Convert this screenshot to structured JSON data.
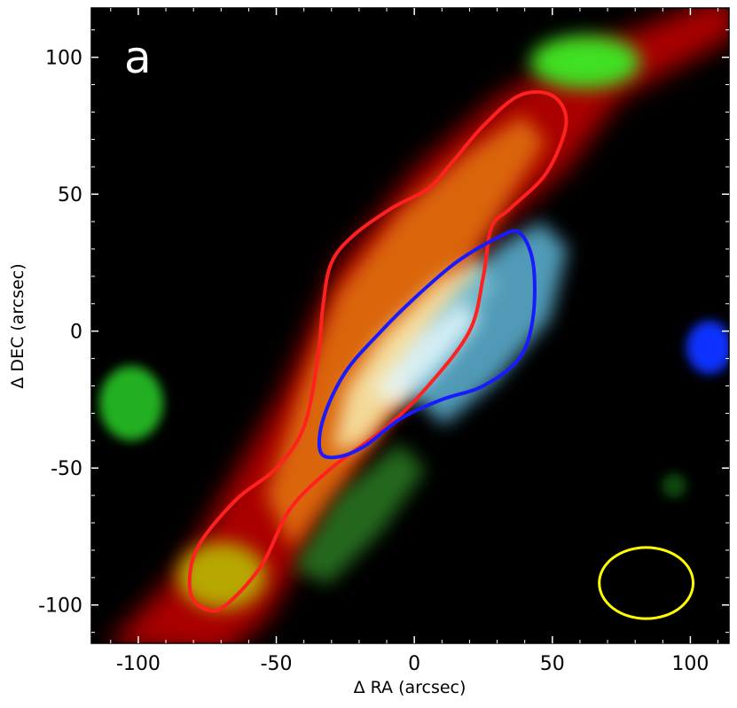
{
  "figure": {
    "panel_label": "a",
    "xlabel": "Δ RA (arcsec)",
    "ylabel": "Δ DEC (arcsec)",
    "x_ticks": [
      {
        "value": -100,
        "label": "-100"
      },
      {
        "value": -50,
        "label": "-50"
      },
      {
        "value": 0,
        "label": "0"
      },
      {
        "value": 50,
        "label": "50"
      },
      {
        "value": 100,
        "label": "100"
      }
    ],
    "y_ticks": [
      {
        "value": 100,
        "label": "100"
      },
      {
        "value": 50,
        "label": "50"
      },
      {
        "value": 0,
        "label": "0"
      },
      {
        "value": -50,
        "label": "-50"
      },
      {
        "value": -100,
        "label": "-100"
      }
    ],
    "xlim": [
      -117,
      114
    ],
    "ylim": [
      -114,
      118
    ],
    "image_type": "RGB composite map with contours",
    "contours": [
      {
        "name": "red-contour",
        "color": "#ff2020",
        "points": [
          [
            -74,
            -102
          ],
          [
            -81,
            -96
          ],
          [
            -79,
            -80
          ],
          [
            -65,
            -62
          ],
          [
            -50,
            -50
          ],
          [
            -40,
            -35
          ],
          [
            -35,
            -10
          ],
          [
            -33,
            10
          ],
          [
            -30,
            25
          ],
          [
            -22,
            35
          ],
          [
            -8,
            45
          ],
          [
            5,
            52
          ],
          [
            14,
            62
          ],
          [
            25,
            75
          ],
          [
            38,
            86
          ],
          [
            50,
            86
          ],
          [
            55,
            76
          ],
          [
            48,
            58
          ],
          [
            35,
            45
          ],
          [
            28,
            38
          ],
          [
            25,
            20
          ],
          [
            20,
            0
          ],
          [
            5,
            -20
          ],
          [
            -10,
            -35
          ],
          [
            -30,
            -50
          ],
          [
            -45,
            -65
          ],
          [
            -55,
            -85
          ],
          [
            -67,
            -99
          ]
        ]
      },
      {
        "name": "blue-contour",
        "color": "#1a1aff",
        "points": [
          [
            -28,
            -46
          ],
          [
            -34,
            -44
          ],
          [
            -33,
            -32
          ],
          [
            -25,
            -15
          ],
          [
            -12,
            0
          ],
          [
            0,
            12
          ],
          [
            15,
            25
          ],
          [
            30,
            34
          ],
          [
            38,
            36
          ],
          [
            43,
            25
          ],
          [
            43,
            5
          ],
          [
            38,
            -10
          ],
          [
            25,
            -20
          ],
          [
            10,
            -25
          ],
          [
            -5,
            -32
          ],
          [
            -18,
            -42
          ]
        ]
      }
    ],
    "beam_ellipse": {
      "color": "#ffff00",
      "ra": 84,
      "dec": -92,
      "semi_major": 17,
      "semi_minor": 13
    },
    "colors": {
      "background": "#000000",
      "frame": "#000000"
    }
  }
}
